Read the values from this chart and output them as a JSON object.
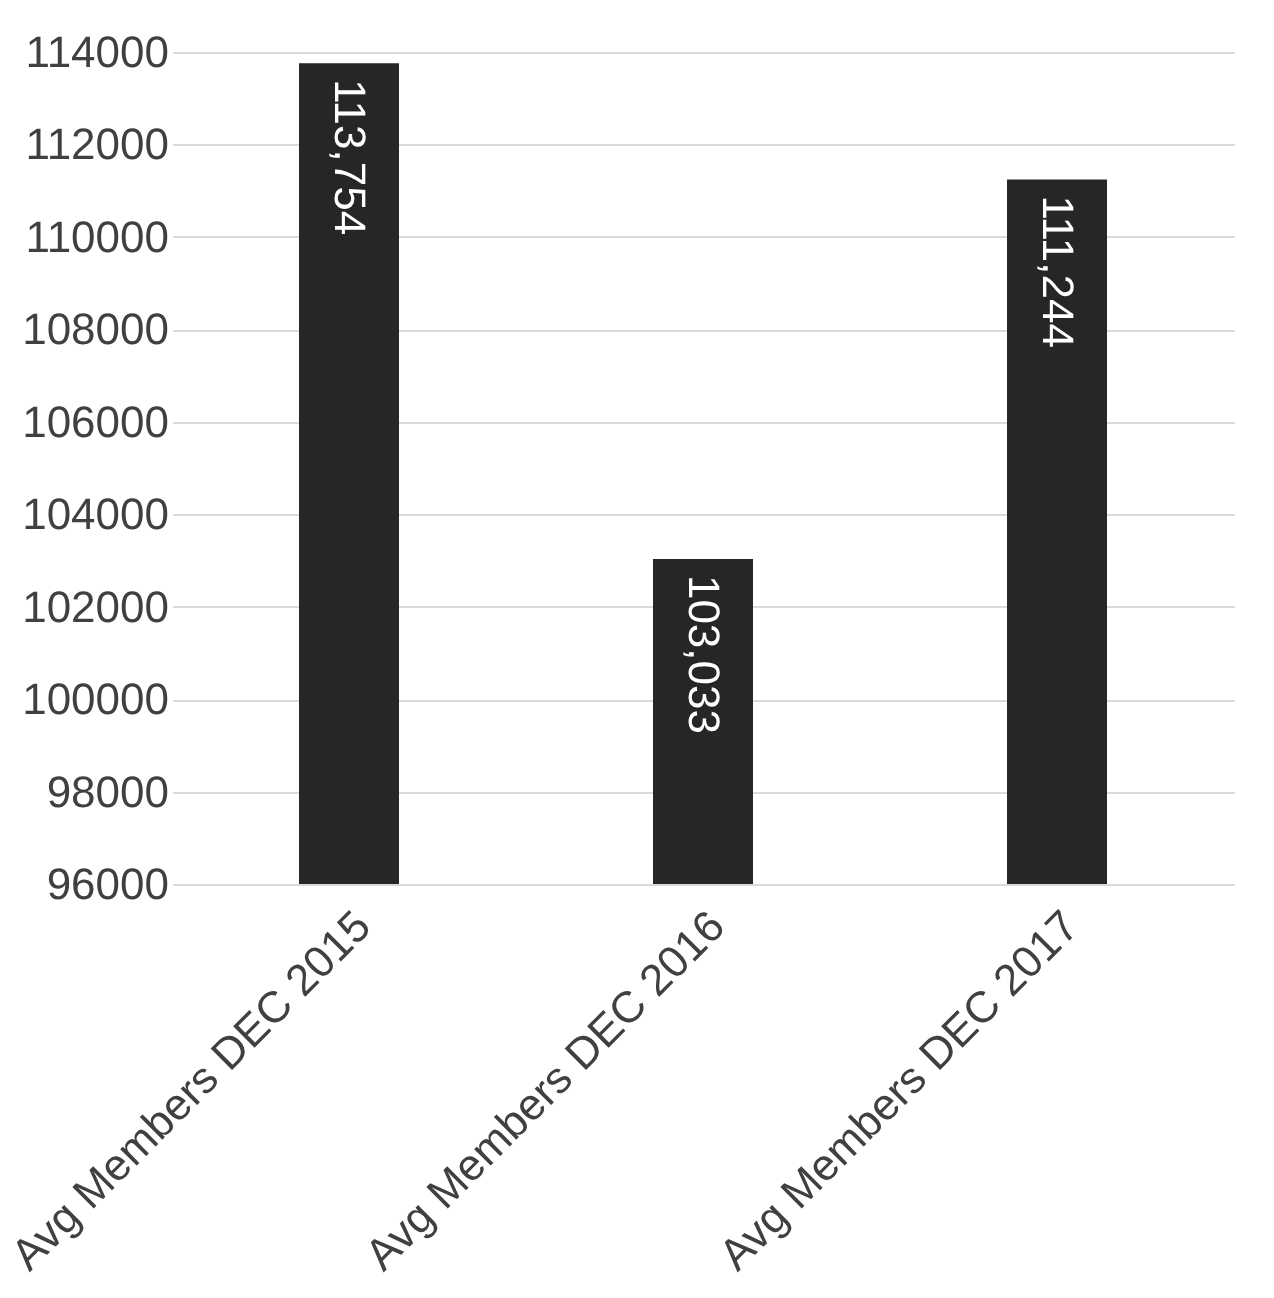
{
  "chart_data": {
    "type": "bar",
    "categories": [
      "Avg Members DEC 2015",
      "Avg Members DEC 2016",
      "Avg Members DEC 2017"
    ],
    "values": [
      113754,
      103033,
      111244
    ],
    "color": "#262626",
    "value_labels": [
      "113,754",
      "103,033",
      "111,244"
    ],
    "ylim": [
      96000,
      114000
    ],
    "yticks": [
      96000,
      98000,
      100000,
      102000,
      104000,
      106000,
      108000,
      110000,
      112000,
      114000
    ],
    "grid": "y"
  }
}
